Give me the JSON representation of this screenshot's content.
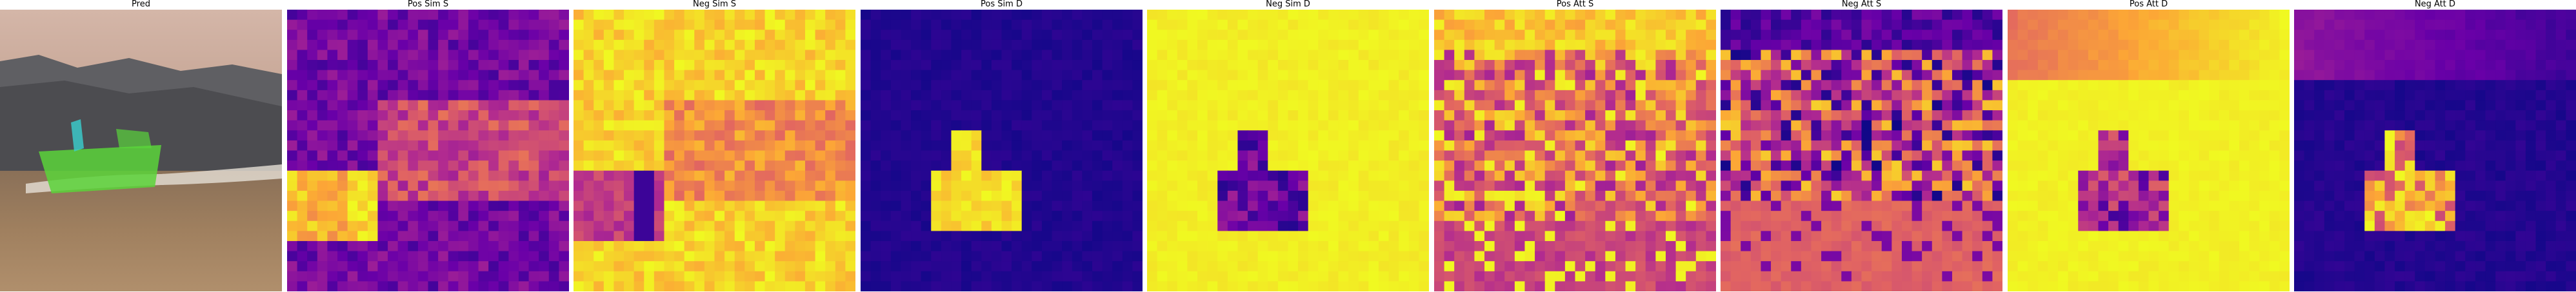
{
  "panels": [
    {
      "title": "Pred",
      "kind": "photo"
    },
    {
      "title": "Pos Sim S",
      "kind": "heatmap",
      "colormap": "plasma"
    },
    {
      "title": "Neg Sim S",
      "kind": "heatmap",
      "colormap": "plasma"
    },
    {
      "title": "Pos Sim D",
      "kind": "heatmap",
      "colormap": "plasma"
    },
    {
      "title": "Neg Sim D",
      "kind": "heatmap",
      "colormap": "plasma"
    },
    {
      "title": "Pos Att S",
      "kind": "heatmap",
      "colormap": "plasma"
    },
    {
      "title": "Neg Att S",
      "kind": "heatmap",
      "colormap": "plasma"
    },
    {
      "title": "Pos Att D",
      "kind": "heatmap",
      "colormap": "plasma"
    },
    {
      "title": "Neg Att D",
      "kind": "heatmap",
      "colormap": "plasma"
    }
  ],
  "colors": {
    "plasma_dark": "#0d0887",
    "plasma_purple": "#6a00a8",
    "plasma_magenta": "#b12a90",
    "plasma_orange": "#e16462",
    "plasma_amber": "#fca636",
    "plasma_yellow": "#f0f921",
    "mask_green": "#5ad43a",
    "mask_cyan": "#3ad0d0"
  }
}
